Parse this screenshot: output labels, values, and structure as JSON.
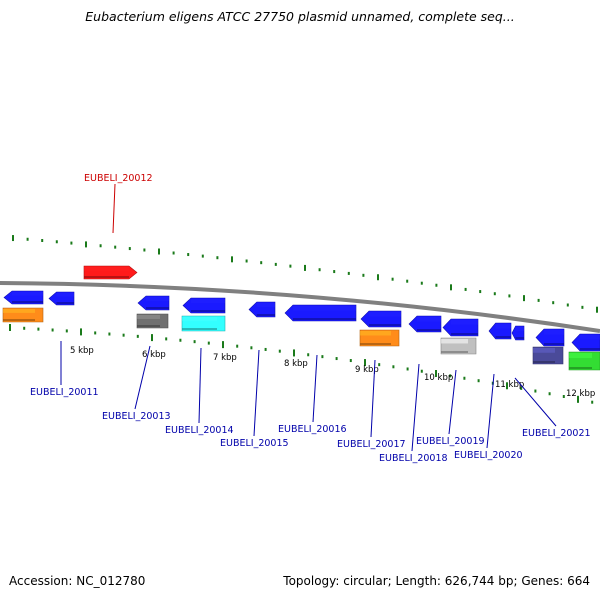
{
  "title": "Eubacterium eligens ATCC 27750 plasmid unnamed, complete seq...",
  "footer": {
    "accession": "Accession: NC_012780",
    "summary": "Topology: circular; Length: 626,744 bp; Genes: 664"
  },
  "colors": {
    "backbone": "#808080",
    "tick": "#1a7a1a",
    "label_top": "#cc0000",
    "label_bottom": "#0000aa"
  },
  "scale_labels": [
    "5 kbp",
    "6 kbp",
    "7 kbp",
    "8 kbp",
    "9 kbp",
    "10 kbp",
    "11 kbp",
    "12 kbp"
  ],
  "gene_labels": {
    "top": [
      "EUBELI_20012"
    ],
    "bottom": [
      "EUBELI_20011",
      "EUBELI_20013",
      "EUBELI_20014",
      "EUBELI_20015",
      "EUBELI_20016",
      "EUBELI_20017",
      "EUBELI_20018",
      "EUBELI_20019",
      "EUBELI_20020",
      "EUBELI_20021"
    ]
  },
  "gene_colors": [
    "#ff1a1a",
    "#1a1aff",
    "#ff8c1a",
    "#707070",
    "#33ffff",
    "#c0c0c0",
    "#4a4a99",
    "#33dd33"
  ]
}
